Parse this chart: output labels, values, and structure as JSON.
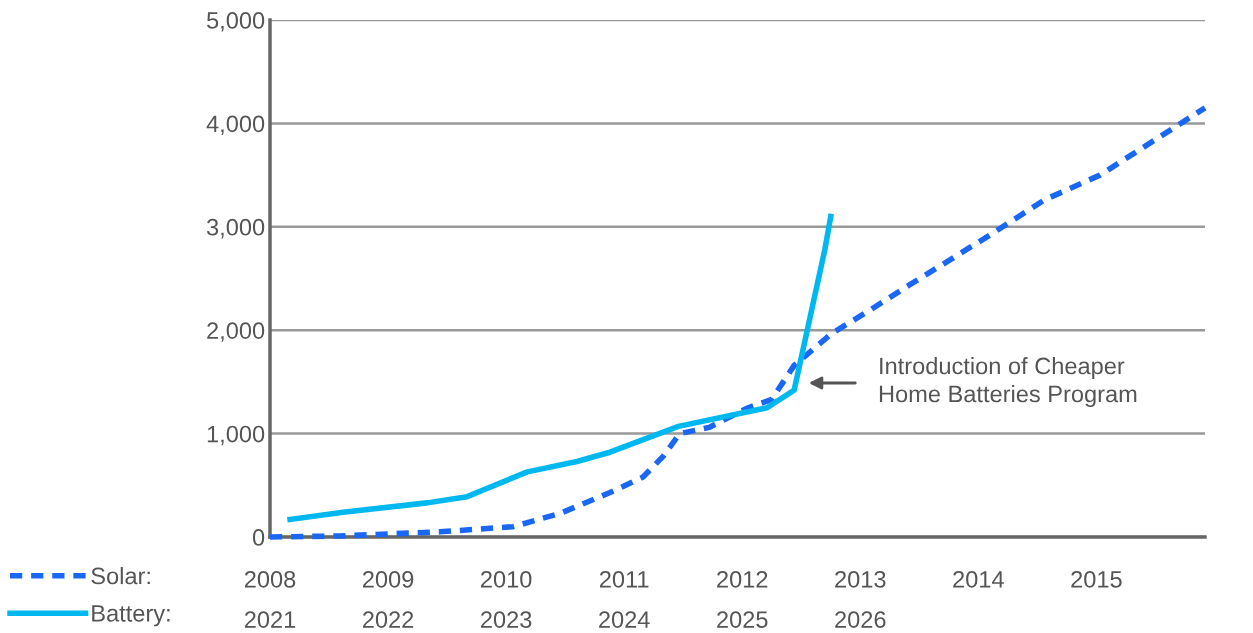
{
  "chart_data": {
    "type": "line",
    "series": [
      {
        "name": "Solar:",
        "color": "#1a66f5",
        "line_style": "dashed",
        "x": [
          2008.0,
          2008.59,
          2009.44,
          2010.06,
          2010.46,
          2010.88,
          2011.16,
          2011.33,
          2011.47,
          2011.72,
          2012.05,
          2012.25,
          2012.44,
          2012.76,
          2013.09,
          2013.42,
          2014.07,
          2014.56,
          2015.03,
          2015.92
        ],
        "values": [
          0,
          10,
          50,
          100,
          230,
          430,
          580,
          780,
          1000,
          1060,
          1250,
          1330,
          1660,
          1970,
          2200,
          2440,
          2900,
          3260,
          3500,
          4150
        ]
      },
      {
        "name": "Battery:",
        "color": "#00b8f0",
        "line_style": "solid",
        "axis": "x2",
        "x": [
          2021.17,
          2021.62,
          2022.33,
          2022.67,
          2023.18,
          2023.6,
          2023.88,
          2024.46,
          2025.21,
          2025.44,
          2025.7,
          2025.75
        ],
        "values": [
          170,
          240,
          330,
          390,
          630,
          730,
          820,
          1070,
          1250,
          1420,
          2780,
          3100
        ]
      }
    ],
    "xlim": [
      2008,
      2015.92
    ],
    "xticks": [
      2008,
      2009,
      2010,
      2011,
      2012,
      2013,
      2014,
      2015
    ],
    "x2lim": [
      2021,
      2028.92
    ],
    "x2ticks": [
      2021,
      2022,
      2023,
      2024,
      2025,
      2026
    ],
    "ylim": [
      0,
      5000
    ],
    "yticks": [
      {
        "value": 0,
        "label": "0"
      },
      {
        "value": 1000,
        "label": "1,000"
      },
      {
        "value": 2000,
        "label": "2,000"
      },
      {
        "value": 3000,
        "label": "3,000"
      },
      {
        "value": 4000,
        "label": "4,000"
      },
      {
        "value": 5000,
        "label": "5,000"
      }
    ],
    "grid": "y",
    "legend": "bottom left",
    "marker": "none",
    "annotations": [
      "Introduction of Cheaper\nHome Batteries Program"
    ]
  }
}
